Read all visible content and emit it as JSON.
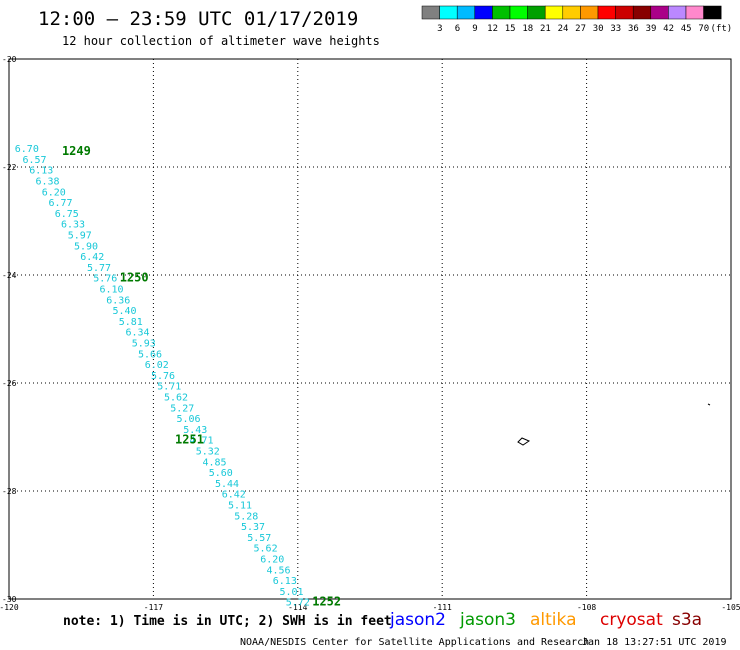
{
  "header": {
    "title": "12:00 – 23:59 UTC 01/17/2019",
    "subtitle": "12 hour collection of altimeter wave heights"
  },
  "color_scale": {
    "colors": [
      "#808080",
      "#00ffff",
      "#00bbff",
      "#0000ff",
      "#00c000",
      "#00ff00",
      "#00a000",
      "#ffff00",
      "#ffcc00",
      "#ff9900",
      "#ff0000",
      "#cc0000",
      "#880000",
      "#aa0088",
      "#bb88ff",
      "#ff88cc",
      "#000000"
    ],
    "labels": [
      "3",
      "6",
      "9",
      "12",
      "15",
      "18",
      "21",
      "24",
      "27",
      "30",
      "33",
      "36",
      "39",
      "42",
      "45",
      "70",
      "(ft)"
    ]
  },
  "map": {
    "lon_ticks": [
      "-120",
      "-117",
      "-114",
      "-111",
      "-108",
      "-105"
    ],
    "lat_ticks": [
      "-20",
      "-22",
      "-24",
      "-26",
      "-28",
      "-30"
    ],
    "lon_range": [
      -120,
      -105
    ],
    "lat_range": [
      -20,
      -30
    ],
    "track_color": "#18c8d8",
    "time_color": "#007a00",
    "wave_heights": [
      {
        "v": "6.70",
        "lon": -119.88,
        "lat": -21.65
      },
      {
        "v": "6.57",
        "lon": -119.72,
        "lat": -21.85
      },
      {
        "v": "6.13",
        "lon": -119.58,
        "lat": -22.05
      },
      {
        "v": "6.38",
        "lon": -119.45,
        "lat": -22.25
      },
      {
        "v": "6.20",
        "lon": -119.32,
        "lat": -22.45
      },
      {
        "v": "6.77",
        "lon": -119.18,
        "lat": -22.65
      },
      {
        "v": "6.75",
        "lon": -119.05,
        "lat": -22.85
      },
      {
        "v": "6.33",
        "lon": -118.92,
        "lat": -23.05
      },
      {
        "v": "5.97",
        "lon": -118.78,
        "lat": -23.25
      },
      {
        "v": "5.90",
        "lon": -118.65,
        "lat": -23.45
      },
      {
        "v": "6.42",
        "lon": -118.52,
        "lat": -23.65
      },
      {
        "v": "5.77",
        "lon": -118.38,
        "lat": -23.85
      },
      {
        "v": "5.76",
        "lon": -118.25,
        "lat": -24.05
      },
      {
        "v": "6.10",
        "lon": -118.12,
        "lat": -24.25
      },
      {
        "v": "6.36",
        "lon": -117.98,
        "lat": -24.45
      },
      {
        "v": "5.40",
        "lon": -117.85,
        "lat": -24.65
      },
      {
        "v": "5.81",
        "lon": -117.72,
        "lat": -24.85
      },
      {
        "v": "6.34",
        "lon": -117.58,
        "lat": -25.05
      },
      {
        "v": "5.93",
        "lon": -117.45,
        "lat": -25.25
      },
      {
        "v": "5.66",
        "lon": -117.32,
        "lat": -25.45
      },
      {
        "v": "6.02",
        "lon": -117.18,
        "lat": -25.65
      },
      {
        "v": "5.76",
        "lon": -117.05,
        "lat": -25.85
      },
      {
        "v": "5.71",
        "lon": -116.92,
        "lat": -26.05
      },
      {
        "v": "5.62",
        "lon": -116.78,
        "lat": -26.25
      },
      {
        "v": "5.27",
        "lon": -116.65,
        "lat": -26.45
      },
      {
        "v": "5.06",
        "lon": -116.52,
        "lat": -26.65
      },
      {
        "v": "5.43",
        "lon": -116.38,
        "lat": -26.85
      },
      {
        "v": "4.71",
        "lon": -116.25,
        "lat": -27.05
      },
      {
        "v": "5.32",
        "lon": -116.12,
        "lat": -27.25
      },
      {
        "v": "4.85",
        "lon": -115.98,
        "lat": -27.45
      },
      {
        "v": "5.60",
        "lon": -115.85,
        "lat": -27.65
      },
      {
        "v": "5.44",
        "lon": -115.72,
        "lat": -27.85
      },
      {
        "v": "6.42",
        "lon": -115.58,
        "lat": -28.05
      },
      {
        "v": "5.11",
        "lon": -115.45,
        "lat": -28.25
      },
      {
        "v": "5.28",
        "lon": -115.32,
        "lat": -28.45
      },
      {
        "v": "5.37",
        "lon": -115.18,
        "lat": -28.65
      },
      {
        "v": "5.57",
        "lon": -115.05,
        "lat": -28.85
      },
      {
        "v": "5.62",
        "lon": -114.92,
        "lat": -29.05
      },
      {
        "v": "6.20",
        "lon": -114.78,
        "lat": -29.25
      },
      {
        "v": "4.56",
        "lon": -114.65,
        "lat": -29.45
      },
      {
        "v": "6.13",
        "lon": -114.52,
        "lat": -29.65
      },
      {
        "v": "5.01",
        "lon": -114.38,
        "lat": -29.85
      },
      {
        "v": "5.72",
        "lon": -114.25,
        "lat": -30.05
      }
    ],
    "time_labels": [
      {
        "t": "1249",
        "lon": -118.9,
        "lat": -21.7
      },
      {
        "t": "1250",
        "lon": -117.7,
        "lat": -24.05
      },
      {
        "t": "1251",
        "lon": -116.55,
        "lat": -27.05
      },
      {
        "t": "1252",
        "lon": -113.7,
        "lat": -30.05
      }
    ],
    "island_icon": "small-island-outline"
  },
  "footer": {
    "note": "note: 1) Time is in UTC; 2) SWH is in feet",
    "satellites": [
      {
        "name": "jason2",
        "color": "#0000ff"
      },
      {
        "name": "jason3",
        "color": "#009900"
      },
      {
        "name": "altika",
        "color": "#ff9900"
      },
      {
        "name": "cryosat",
        "color": "#dd0000"
      },
      {
        "name": "s3a",
        "color": "#880000"
      }
    ],
    "credit": "NOAA/NESDIS Center for Satellite Applications and Research",
    "timestamp": "Jan 18 13:27:51 UTC 2019"
  }
}
